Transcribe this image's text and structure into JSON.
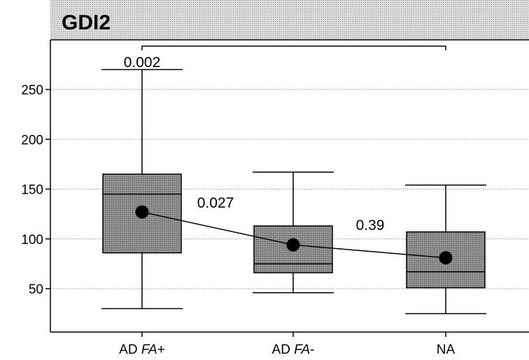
{
  "chart_data": {
    "type": "box",
    "title": "GDI2",
    "xlabel": "",
    "ylabel": "",
    "ylim": [
      15,
      295
    ],
    "yticks": [
      50,
      100,
      150,
      200,
      250
    ],
    "grid": true,
    "categories": [
      {
        "label_main": "AD ",
        "label_italic": "FA",
        "label_suffix": "+"
      },
      {
        "label_main": "AD ",
        "label_italic": "FA",
        "label_suffix": "-"
      },
      {
        "label_main": "NA",
        "label_italic": "",
        "label_suffix": ""
      }
    ],
    "boxes": [
      {
        "whisker_low": 30,
        "q1": 86,
        "median": 145,
        "q3": 165,
        "whisker_high": 270,
        "mean": 127
      },
      {
        "whisker_low": 46,
        "q1": 66,
        "median": 75,
        "q3": 113,
        "whisker_high": 167,
        "mean": 94
      },
      {
        "whisker_low": 25,
        "q1": 51,
        "median": 67,
        "q3": 107,
        "whisker_high": 154,
        "mean": 81
      }
    ],
    "annotations": [
      {
        "text": "0.002",
        "type": "bracket",
        "from": 0,
        "to": 2
      },
      {
        "text": "0.027",
        "type": "between",
        "from": 0,
        "to": 1
      },
      {
        "text": "0.39",
        "type": "between",
        "from": 1,
        "to": 2
      }
    ],
    "colors": {
      "box_fill": "#8c8c8c",
      "mean_marker": "#000000",
      "line": "#000000",
      "grid": "#9a9a9a"
    }
  }
}
